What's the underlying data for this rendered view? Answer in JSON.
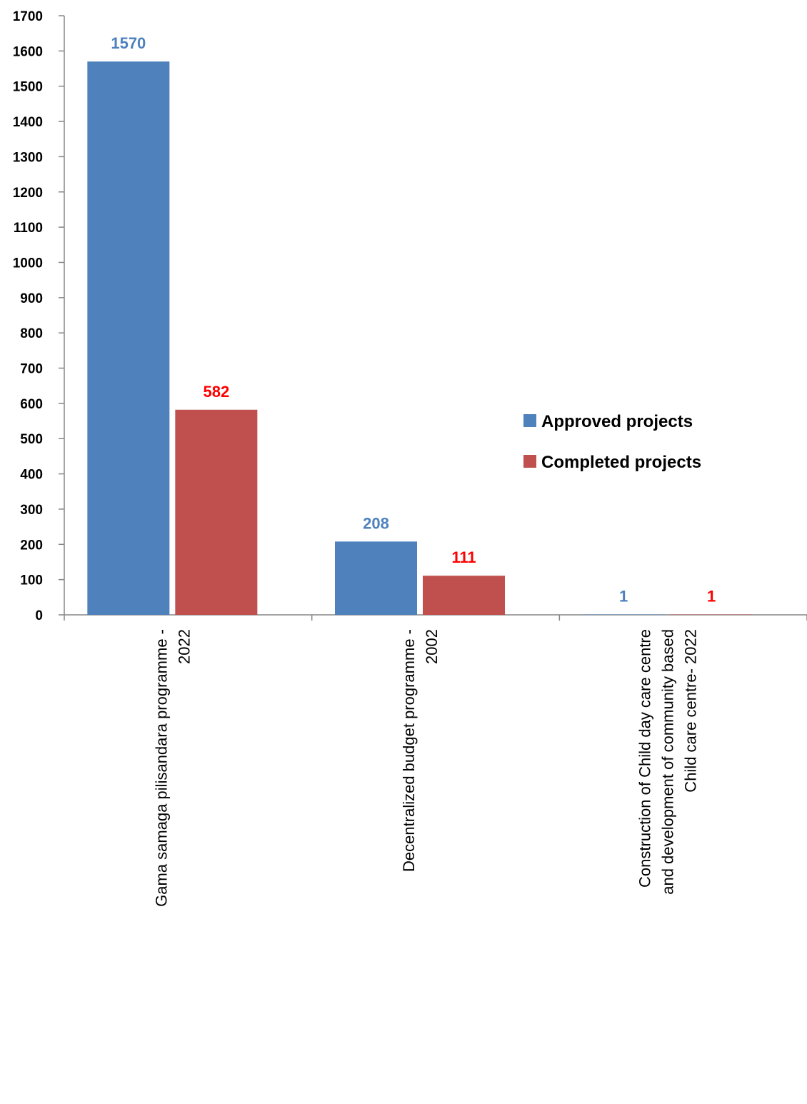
{
  "chart_data": {
    "type": "bar",
    "title": "",
    "xlabel": "",
    "ylabel": "",
    "ylim": [
      0,
      1700
    ],
    "yticks": [
      0,
      100,
      200,
      300,
      400,
      500,
      600,
      700,
      800,
      900,
      1000,
      1100,
      1200,
      1300,
      1400,
      1500,
      1600,
      1700
    ],
    "categories": [
      [
        "Gama samaga pilisandara programme -",
        "2022"
      ],
      [
        "Decentralized budget programme -",
        "2002"
      ],
      [
        "Construction of Child day care centre",
        "and development of community based",
        "Child care centre- 2022"
      ]
    ],
    "series": [
      {
        "name": "Approved projects",
        "values": [
          1570,
          208,
          1
        ],
        "color": "#4f81bd",
        "label_color": "#4f81bd"
      },
      {
        "name": "Completed projects",
        "values": [
          582,
          111,
          1
        ],
        "color": "#c0504d",
        "label_color": "#ff0000"
      }
    ],
    "legend_position": "right",
    "grid": false
  }
}
